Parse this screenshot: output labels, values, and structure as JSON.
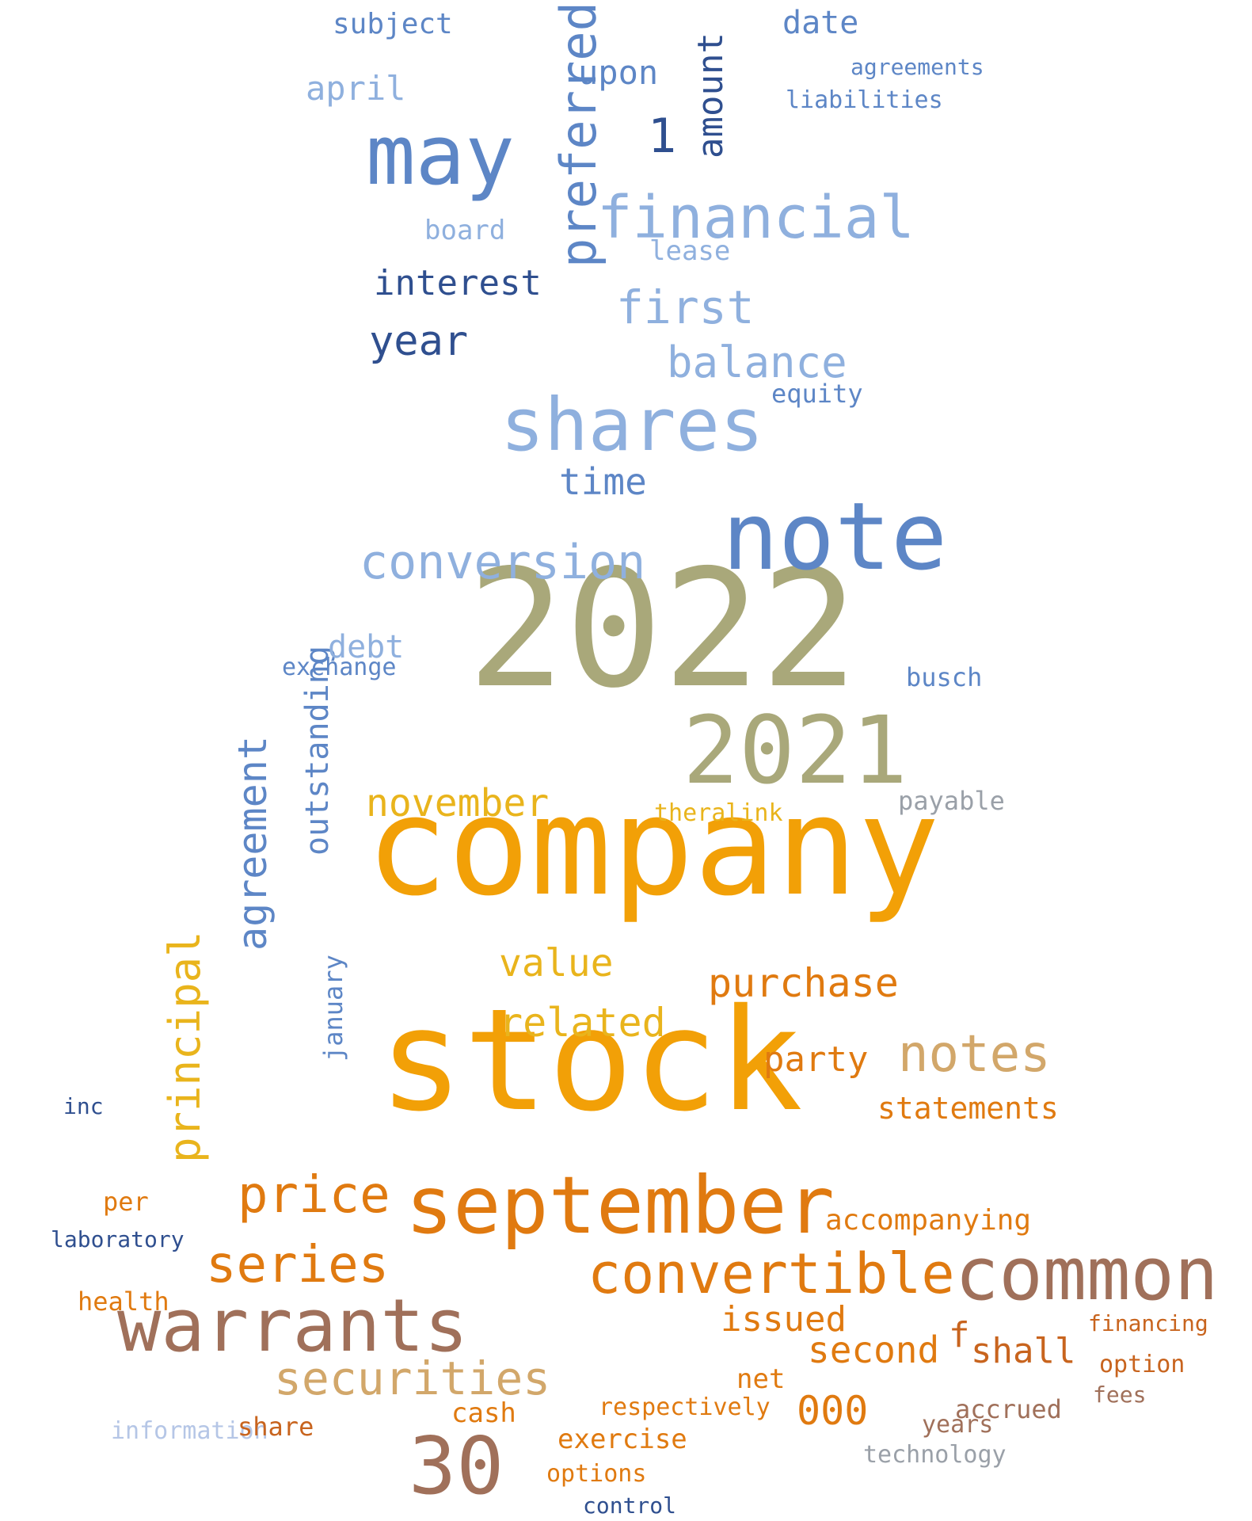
{
  "title": "word cloud",
  "palette": {
    "navy": "#2f4f8f",
    "blue": "#5d86c6",
    "lightblue": "#8fb0de",
    "paleblue": "#b5c6e6",
    "olive": "#a9a87a",
    "gold": "#e9b41c",
    "orange": "#f2a007",
    "darkorange": "#e07a10",
    "burnt": "#c8641e",
    "brown": "#a0705a",
    "tan": "#d2a76a",
    "grey": "#9aa0a8",
    "rust": "#c86a3a"
  },
  "words": [
    {
      "text": "2022",
      "color": "olive"
    },
    {
      "text": "company",
      "color": "orange"
    },
    {
      "text": "stock",
      "color": "orange"
    },
    {
      "text": "note",
      "color": "blue"
    },
    {
      "text": "2021",
      "color": "olive"
    },
    {
      "text": "may",
      "color": "blue"
    },
    {
      "text": "shares",
      "color": "lightblue"
    },
    {
      "text": "september",
      "color": "darkorange"
    },
    {
      "text": "common",
      "color": "brown"
    },
    {
      "text": "warrants",
      "color": "brown"
    },
    {
      "text": "financial",
      "color": "lightblue"
    },
    {
      "text": "convertible",
      "color": "darkorange"
    },
    {
      "text": "conversion",
      "color": "lightblue"
    },
    {
      "text": "notes",
      "color": "tan"
    },
    {
      "text": "price",
      "color": "darkorange"
    },
    {
      "text": "preferred",
      "color": "blue"
    },
    {
      "text": "30",
      "color": "brown"
    },
    {
      "text": "series",
      "color": "darkorange"
    },
    {
      "text": "securities",
      "color": "tan"
    },
    {
      "text": "agreement",
      "color": "blue"
    },
    {
      "text": "principal",
      "color": "gold"
    },
    {
      "text": "balance",
      "color": "lightblue"
    },
    {
      "text": "first",
      "color": "lightblue"
    },
    {
      "text": "year",
      "color": "navy"
    },
    {
      "text": "purchase",
      "color": "darkorange"
    },
    {
      "text": "related",
      "color": "gold"
    },
    {
      "text": "value",
      "color": "gold"
    },
    {
      "text": "november",
      "color": "gold"
    },
    {
      "text": "amount",
      "color": "navy"
    },
    {
      "text": "outstanding",
      "color": "blue"
    },
    {
      "text": "interest",
      "color": "navy"
    },
    {
      "text": "1",
      "color": "navy"
    },
    {
      "text": "time",
      "color": "blue"
    },
    {
      "text": "debt",
      "color": "lightblue"
    },
    {
      "text": "000",
      "color": "darkorange"
    },
    {
      "text": "second",
      "color": "darkorange"
    },
    {
      "text": "issued",
      "color": "darkorange"
    },
    {
      "text": "shall",
      "color": "burnt"
    },
    {
      "text": "statements",
      "color": "darkorange"
    },
    {
      "text": "accompanying",
      "color": "darkorange"
    },
    {
      "text": "april",
      "color": "lightblue"
    },
    {
      "text": "upon",
      "color": "blue"
    },
    {
      "text": "date",
      "color": "blue"
    },
    {
      "text": "subject",
      "color": "blue"
    },
    {
      "text": "board",
      "color": "lightblue"
    },
    {
      "text": "lease",
      "color": "lightblue"
    },
    {
      "text": "equity",
      "color": "blue"
    },
    {
      "text": "exchange",
      "color": "blue"
    },
    {
      "text": "party",
      "color": "darkorange"
    },
    {
      "text": "payable",
      "color": "grey"
    },
    {
      "text": "january",
      "color": "blue"
    },
    {
      "text": "cash",
      "color": "darkorange"
    },
    {
      "text": "exercise",
      "color": "darkorange"
    },
    {
      "text": "options",
      "color": "darkorange"
    },
    {
      "text": "information",
      "color": "paleblue"
    },
    {
      "text": "accrued",
      "color": "brown"
    },
    {
      "text": "theralink",
      "color": "gold"
    },
    {
      "text": "busch",
      "color": "blue"
    },
    {
      "text": "f",
      "color": "burnt"
    },
    {
      "text": "years",
      "color": "brown"
    },
    {
      "text": "technology",
      "color": "grey"
    },
    {
      "text": "option",
      "color": "burnt"
    },
    {
      "text": "financing",
      "color": "burnt"
    },
    {
      "text": "fees",
      "color": "brown"
    },
    {
      "text": "health",
      "color": "darkorange"
    },
    {
      "text": "laboratory",
      "color": "navy"
    },
    {
      "text": "inc",
      "color": "navy"
    },
    {
      "text": "per",
      "color": "darkorange"
    },
    {
      "text": "share",
      "color": "burnt"
    },
    {
      "text": "net",
      "color": "darkorange"
    },
    {
      "text": "control",
      "color": "navy"
    },
    {
      "text": "respectively",
      "color": "darkorange"
    },
    {
      "text": "liabilities",
      "color": "blue"
    },
    {
      "text": "agreements",
      "color": "blue"
    },
    {
      "text": "financial",
      "color": "lightblue"
    }
  ]
}
